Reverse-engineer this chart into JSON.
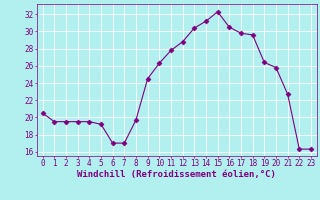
{
  "x": [
    0,
    1,
    2,
    3,
    4,
    5,
    6,
    7,
    8,
    9,
    10,
    11,
    12,
    13,
    14,
    15,
    16,
    17,
    18,
    19,
    20,
    21,
    22,
    23
  ],
  "y": [
    20.5,
    19.5,
    19.5,
    19.5,
    19.5,
    19.2,
    17.0,
    17.0,
    19.7,
    24.5,
    26.3,
    27.8,
    28.8,
    30.4,
    31.2,
    32.3,
    30.5,
    29.8,
    29.6,
    26.4,
    25.8,
    22.7,
    16.3,
    16.3
  ],
  "line_color": "#800080",
  "marker": "D",
  "marker_size": 2.5,
  "bg_color": "#b2f0f0",
  "grid_color": "#ffffff",
  "xlabel": "Windchill (Refroidissement éolien,°C)",
  "xlim": [
    -0.5,
    23.5
  ],
  "ylim": [
    15.5,
    33.2
  ],
  "yticks": [
    16,
    18,
    20,
    22,
    24,
    26,
    28,
    30,
    32
  ],
  "xticks": [
    0,
    1,
    2,
    3,
    4,
    5,
    6,
    7,
    8,
    9,
    10,
    11,
    12,
    13,
    14,
    15,
    16,
    17,
    18,
    19,
    20,
    21,
    22,
    23
  ],
  "tick_color": "#800080",
  "label_color": "#800080",
  "tick_fontsize": 5.5,
  "xlabel_fontsize": 6.5
}
